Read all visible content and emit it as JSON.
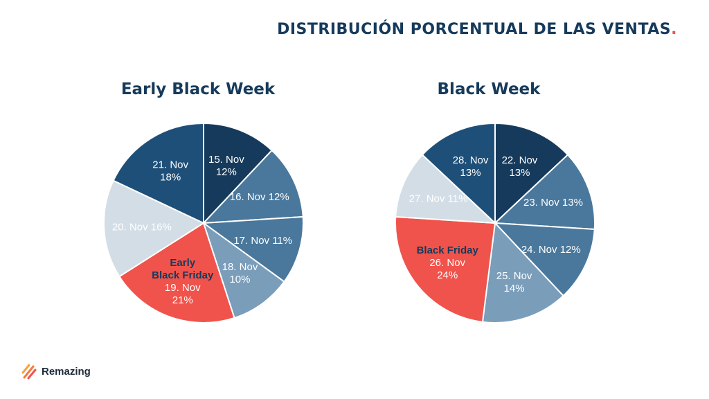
{
  "page_title": "DISTRIBUCIÓN PORCENTUAL DE LAS VENTAS",
  "title_dot": ".",
  "brand": {
    "name": "Remazing"
  },
  "colors": {
    "navy_dark": "#163a5b",
    "navy": "#1e4f78",
    "steel": "#4a789c",
    "steel_light": "#7a9dba",
    "pale": "#d3dde5",
    "coral": "#f0534b",
    "accent": "#f0534b"
  },
  "chart_data": [
    {
      "type": "pie",
      "title": "Early Black Week",
      "slices": [
        {
          "name": "15. Nov",
          "value": 12,
          "percent": "12%",
          "label_lines": [
            "15. Nov",
            "12%"
          ],
          "color": "#163a5b",
          "text_color": "#ffffff"
        },
        {
          "name": "16. Nov",
          "value": 12,
          "percent": "12%",
          "label_lines": [
            "16. Nov 12%"
          ],
          "color": "#4a789c",
          "text_color": "#ffffff"
        },
        {
          "name": "17. Nov",
          "value": 11,
          "percent": "11%",
          "label_lines": [
            "17. Nov 11%"
          ],
          "color": "#4a789c",
          "text_color": "#ffffff"
        },
        {
          "name": "18. Nov",
          "value": 10,
          "percent": "10%",
          "label_lines": [
            "18. Nov",
            "10%"
          ],
          "color": "#7a9dba",
          "text_color": "#ffffff"
        },
        {
          "name": "19. Nov",
          "value": 21,
          "percent": "21%",
          "label_lines": [
            "19. Nov",
            "21%"
          ],
          "highlight_lines": [
            "Early",
            "Black Friday"
          ],
          "color": "#f0534b",
          "text_color": "#ffffff"
        },
        {
          "name": "20. Nov",
          "value": 16,
          "percent": "16%",
          "label_lines": [
            "20. Nov 16%"
          ],
          "color": "#d3dde5",
          "text_color": "#ffffff"
        },
        {
          "name": "21. Nov",
          "value": 18,
          "percent": "18%",
          "label_lines": [
            "21. Nov",
            "18%"
          ],
          "color": "#1e4f78",
          "text_color": "#ffffff"
        }
      ]
    },
    {
      "type": "pie",
      "title": "Black Week",
      "slices": [
        {
          "name": "22. Nov",
          "value": 13,
          "percent": "13%",
          "label_lines": [
            "22. Nov",
            "13%"
          ],
          "color": "#163a5b",
          "text_color": "#ffffff"
        },
        {
          "name": "23. Nov",
          "value": 13,
          "percent": "13%",
          "label_lines": [
            "23. Nov 13%"
          ],
          "color": "#4a789c",
          "text_color": "#ffffff"
        },
        {
          "name": "24. Nov",
          "value": 12,
          "percent": "12%",
          "label_lines": [
            "24. Nov 12%"
          ],
          "color": "#4a789c",
          "text_color": "#ffffff"
        },
        {
          "name": "25. Nov",
          "value": 14,
          "percent": "14%",
          "label_lines": [
            "25. Nov",
            "14%"
          ],
          "color": "#7a9dba",
          "text_color": "#ffffff"
        },
        {
          "name": "26. Nov",
          "value": 24,
          "percent": "24%",
          "label_lines": [
            "26. Nov",
            "24%"
          ],
          "highlight_lines": [
            "Black Friday"
          ],
          "color": "#f0534b",
          "text_color": "#ffffff"
        },
        {
          "name": "27. Nov",
          "value": 11,
          "percent": "11%",
          "label_lines": [
            "27. Nov 11%"
          ],
          "color": "#d3dde5",
          "text_color": "#ffffff"
        },
        {
          "name": "28. Nov",
          "value": 13,
          "percent": "13%",
          "label_lines": [
            "28. Nov",
            "13%"
          ],
          "color": "#1e4f78",
          "text_color": "#ffffff"
        }
      ]
    }
  ]
}
